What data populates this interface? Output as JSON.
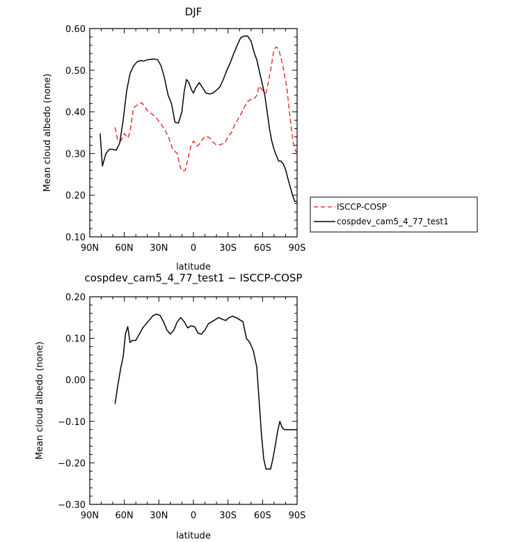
{
  "chart_data": [
    {
      "type": "line",
      "title": "DJF",
      "xlabel": "",
      "ylabel": "Mean cloud albedo (none)",
      "xlim": [
        -90,
        90
      ],
      "ylim": [
        0.1,
        0.6
      ],
      "x_tick_values": [
        -90,
        -60,
        -30,
        0,
        30,
        60,
        90
      ],
      "x_tick_labels": [
        "90N",
        "60N",
        "30N",
        "0",
        "30S",
        "60S",
        "90S"
      ],
      "y_tick_values": [
        0.1,
        0.2,
        0.3,
        0.4,
        0.5,
        0.6
      ],
      "y_tick_labels": [
        "0.10",
        "0.20",
        "0.30",
        "0.40",
        "0.50",
        "0.60"
      ],
      "grid": false,
      "legend": "right",
      "series": [
        {
          "name": "ISCCP-COSP",
          "color": "#e8312b",
          "dash": "dashed",
          "x": [
            -68,
            -66,
            -63,
            -60,
            -57,
            -55,
            -52,
            -48,
            -45,
            -42,
            -40,
            -36,
            -32,
            -28,
            -25,
            -21,
            -18,
            -14,
            -12,
            -10,
            -7,
            -5,
            -2,
            0,
            3,
            5,
            8,
            11,
            14,
            17,
            20,
            22,
            24,
            27,
            30,
            33,
            36,
            40,
            44,
            47,
            50,
            53,
            55,
            57,
            59,
            61,
            63,
            65,
            67,
            70,
            72,
            74,
            76,
            78,
            81,
            85,
            87,
            89,
            90
          ],
          "y": [
            0.363,
            0.335,
            0.33,
            0.348,
            0.337,
            0.352,
            0.41,
            0.418,
            0.422,
            0.412,
            0.403,
            0.395,
            0.385,
            0.37,
            0.358,
            0.335,
            0.31,
            0.3,
            0.273,
            0.258,
            0.26,
            0.285,
            0.32,
            0.33,
            0.318,
            0.322,
            0.335,
            0.342,
            0.338,
            0.328,
            0.32,
            0.32,
            0.322,
            0.325,
            0.34,
            0.35,
            0.37,
            0.388,
            0.41,
            0.425,
            0.43,
            0.432,
            0.44,
            0.462,
            0.455,
            0.45,
            0.445,
            0.47,
            0.5,
            0.55,
            0.556,
            0.55,
            0.53,
            0.505,
            0.46,
            0.36,
            0.32,
            0.305,
            0.3
          ]
        },
        {
          "name": "cospdev_cam5_4_77_test1",
          "color": "#000000",
          "dash": "solid",
          "x": [
            -81,
            -79,
            -76,
            -73,
            -70,
            -67,
            -64,
            -61,
            -58,
            -55,
            -52,
            -49,
            -46,
            -43,
            -40,
            -37,
            -34,
            -31,
            -28,
            -25,
            -22,
            -19,
            -16,
            -13,
            -10,
            -8,
            -6,
            -4,
            -2,
            0,
            2,
            5,
            8,
            11,
            14,
            17,
            20,
            23,
            26,
            29,
            32,
            35,
            38,
            41,
            44,
            47,
            50,
            53,
            55,
            57,
            60,
            62,
            64,
            66,
            68,
            70,
            72,
            74,
            76,
            78,
            80,
            82,
            84,
            86,
            88,
            90
          ],
          "y": [
            0.348,
            0.27,
            0.3,
            0.31,
            0.31,
            0.308,
            0.325,
            0.38,
            0.45,
            0.492,
            0.51,
            0.52,
            0.523,
            0.522,
            0.525,
            0.526,
            0.527,
            0.525,
            0.51,
            0.48,
            0.44,
            0.42,
            0.375,
            0.373,
            0.4,
            0.45,
            0.478,
            0.47,
            0.455,
            0.445,
            0.458,
            0.47,
            0.458,
            0.445,
            0.443,
            0.445,
            0.452,
            0.46,
            0.478,
            0.5,
            0.518,
            0.54,
            0.56,
            0.578,
            0.582,
            0.582,
            0.57,
            0.54,
            0.525,
            0.5,
            0.465,
            0.44,
            0.4,
            0.36,
            0.33,
            0.31,
            0.295,
            0.282,
            0.282,
            0.275,
            0.262,
            0.24,
            0.22,
            0.2,
            0.185,
            0.185
          ]
        }
      ]
    },
    {
      "type": "line",
      "title": "cospdev_cam5_4_77_test1 − ISCCP-COSP",
      "xlabel": "latitude",
      "ylabel": "Mean cloud albedo (none)",
      "xlim": [
        -90,
        90
      ],
      "ylim": [
        -0.3,
        0.2
      ],
      "x_tick_values": [
        -90,
        -60,
        -30,
        0,
        30,
        60,
        90
      ],
      "x_tick_labels": [
        "90N",
        "60N",
        "30N",
        "0",
        "30S",
        "60S",
        "90S"
      ],
      "y_tick_values": [
        -0.3,
        -0.2,
        -0.1,
        0.0,
        0.1,
        0.2
      ],
      "y_tick_labels": [
        "−0.30",
        "−0.20",
        "−0.10",
        "0.00",
        "0.10",
        "0.20"
      ],
      "grid": false,
      "series": [
        {
          "color": "#000000",
          "dash": "solid",
          "x": [
            -68,
            -66,
            -63,
            -61,
            -59,
            -57,
            -55,
            -53,
            -50,
            -47,
            -44,
            -41,
            -38,
            -35,
            -32,
            -29,
            -26,
            -23,
            -20,
            -17,
            -14,
            -11,
            -8,
            -5,
            -2,
            1,
            4,
            7,
            10,
            13,
            16,
            19,
            22,
            25,
            28,
            31,
            34,
            37,
            40,
            43,
            46,
            49,
            52,
            55,
            57,
            59,
            61,
            63,
            65,
            67,
            69,
            71,
            73,
            75,
            77,
            79,
            81,
            83,
            85,
            87,
            89,
            90
          ],
          "y": [
            -0.058,
            -0.02,
            0.03,
            0.055,
            0.11,
            0.128,
            0.09,
            0.095,
            0.095,
            0.11,
            0.125,
            0.135,
            0.145,
            0.155,
            0.158,
            0.155,
            0.14,
            0.12,
            0.11,
            0.12,
            0.14,
            0.15,
            0.14,
            0.125,
            0.13,
            0.128,
            0.112,
            0.11,
            0.12,
            0.135,
            0.14,
            0.145,
            0.15,
            0.146,
            0.143,
            0.15,
            0.153,
            0.15,
            0.145,
            0.14,
            0.1,
            0.09,
            0.07,
            0.03,
            -0.05,
            -0.13,
            -0.19,
            -0.215,
            -0.215,
            -0.215,
            -0.19,
            -0.16,
            -0.125,
            -0.1,
            -0.115,
            -0.12,
            -0.12,
            -0.12,
            -0.12,
            -0.12,
            -0.12,
            -0.12
          ]
        }
      ]
    }
  ]
}
